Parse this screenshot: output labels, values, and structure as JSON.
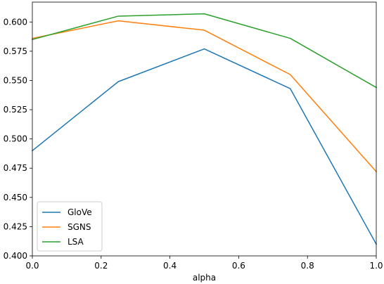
{
  "chart_data": {
    "type": "line",
    "title": "",
    "xlabel": "alpha",
    "ylabel": "",
    "xlim": [
      0.0,
      1.0
    ],
    "ylim": [
      0.4,
      0.617
    ],
    "xticks": [
      0.0,
      0.2,
      0.4,
      0.6,
      0.8,
      1.0
    ],
    "xtick_labels": [
      "0.0",
      "0.2",
      "0.4",
      "0.6",
      "0.8",
      "1.0"
    ],
    "yticks": [
      0.4,
      0.425,
      0.45,
      0.475,
      0.5,
      0.525,
      0.55,
      0.575,
      0.6
    ],
    "ytick_labels": [
      "0.400",
      "0.425",
      "0.450",
      "0.475",
      "0.500",
      "0.525",
      "0.550",
      "0.575",
      "0.600"
    ],
    "grid": false,
    "legend_position": "lower-left",
    "x": [
      0.0,
      0.25,
      0.5,
      0.75,
      1.0
    ],
    "series": [
      {
        "name": "GloVe",
        "color": "#1f77b4",
        "values": [
          0.49,
          0.549,
          0.577,
          0.543,
          0.41
        ]
      },
      {
        "name": "SGNS",
        "color": "#ff7f0e",
        "values": [
          0.586,
          0.601,
          0.593,
          0.555,
          0.472
        ]
      },
      {
        "name": "LSA",
        "color": "#2ca02c",
        "values": [
          0.585,
          0.605,
          0.607,
          0.586,
          0.544
        ]
      }
    ]
  }
}
